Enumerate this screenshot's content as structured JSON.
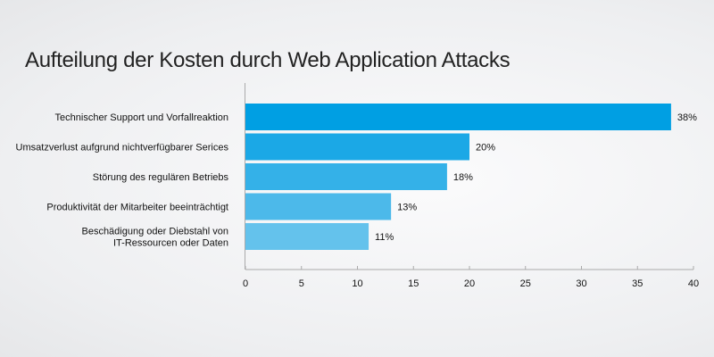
{
  "chart_data": {
    "type": "bar",
    "orientation": "horizontal",
    "title": "Aufteilung der Kosten durch Web Application Attacks",
    "categories": [
      [
        "Technischer Support und Vorfallreaktion"
      ],
      [
        "Umsatzverlust aufgrund nichtverfügbarer Serices"
      ],
      [
        "Störung des regulären Betriebs"
      ],
      [
        "Produktivität der Mitarbeiter beeinträchtigt"
      ],
      [
        "Beschädigung oder Diebstahl von",
        "IT-Ressourcen oder Daten"
      ]
    ],
    "values": [
      38,
      20,
      18,
      13,
      11
    ],
    "value_labels": [
      "38%",
      "20%",
      "18%",
      "13%",
      "11%"
    ],
    "colors": [
      "#009fe3",
      "#1ba8e6",
      "#34b1e8",
      "#4cb9ea",
      "#64c2ec"
    ],
    "xlim": [
      0,
      40
    ],
    "xticks": [
      "0",
      "5",
      "10",
      "15",
      "20",
      "25",
      "30",
      "35",
      "40"
    ],
    "xlabel": "",
    "ylabel": "",
    "grid": false
  }
}
